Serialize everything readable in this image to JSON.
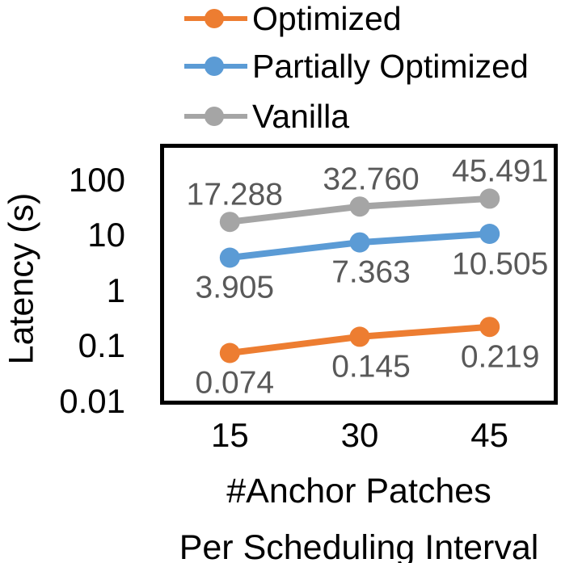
{
  "chart_data": {
    "type": "line",
    "title": "",
    "categories": [
      "15",
      "30",
      "45"
    ],
    "x_axis": {
      "title_line1": "#Anchor Patches",
      "title_line2": "Per Scheduling Interval"
    },
    "y_axis": {
      "title": "Latency (s)",
      "scale": "log",
      "min": 0.01,
      "max": 400,
      "ticks": [
        {
          "label": "100",
          "value": 100
        },
        {
          "label": "10",
          "value": 10
        },
        {
          "label": "1",
          "value": 1
        },
        {
          "label": "0.1",
          "value": 0.1
        },
        {
          "label": "0.01",
          "value": 0.01
        }
      ]
    },
    "grid": false,
    "legend_position": "top-left",
    "series": [
      {
        "name": "Optimized",
        "color": "#ED7D31",
        "values": [
          0.074,
          0.145,
          0.219
        ],
        "labels": [
          "0.074",
          "0.145",
          "0.219"
        ],
        "label_side": "below"
      },
      {
        "name": "Partially Optimized",
        "color": "#5B9BD5",
        "values": [
          3.905,
          7.363,
          10.505
        ],
        "labels": [
          "3.905",
          "7.363",
          "10.505"
        ],
        "label_side": "below"
      },
      {
        "name": "Vanilla",
        "color": "#A5A5A5",
        "values": [
          17.288,
          32.76,
          45.491
        ],
        "labels": [
          "17.288",
          "32.760",
          "45.491"
        ],
        "label_side": "above"
      }
    ],
    "colors": {
      "data_label": "#595959",
      "axis_text": "#000000",
      "plot_border": "#000000",
      "plot_background": "#ffffff"
    }
  }
}
